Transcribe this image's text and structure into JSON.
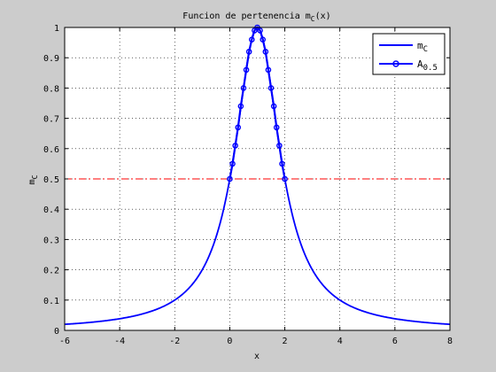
{
  "figure": {
    "background_color": "#cccccc"
  },
  "chart_data": {
    "type": "line",
    "title": "Funcion de pertenencia m",
    "title_sub": "C",
    "title_tail": "(x)",
    "xlabel": "x",
    "ylabel": "m",
    "ylabel_sub": "C",
    "xlim": [
      -6,
      8
    ],
    "ylim": [
      0,
      1
    ],
    "xticks": [
      -6,
      -4,
      -2,
      0,
      2,
      4,
      6,
      8
    ],
    "yticks": [
      0,
      0.1,
      0.2,
      0.3,
      0.4,
      0.5,
      0.6,
      0.7,
      0.8,
      0.9,
      1
    ],
    "grid": true,
    "legend_position": "top-right",
    "function": "1 / (1 + (x - 1)^2)",
    "series": [
      {
        "name": "m",
        "name_sub": "C",
        "color": "#0000ff",
        "marker": "none",
        "x": [
          -6,
          -5,
          -4,
          -3,
          -2,
          -1,
          -0.5,
          0,
          0.25,
          0.5,
          0.75,
          1,
          1.25,
          1.5,
          1.75,
          2,
          2.5,
          3,
          4,
          5,
          6,
          7,
          8
        ],
        "y": [
          0.02,
          0.027,
          0.038,
          0.059,
          0.1,
          0.2,
          0.31,
          0.5,
          0.64,
          0.8,
          0.94,
          1,
          0.94,
          0.8,
          0.64,
          0.5,
          0.31,
          0.2,
          0.1,
          0.059,
          0.038,
          0.027,
          0.02
        ]
      },
      {
        "name": "A",
        "name_sub": "0.5",
        "color": "#0000ff",
        "marker": "circle",
        "x": [
          0,
          0.1,
          0.2,
          0.3,
          0.4,
          0.5,
          0.6,
          0.7,
          0.8,
          0.9,
          1,
          1.1,
          1.2,
          1.3,
          1.4,
          1.5,
          1.6,
          1.7,
          1.8,
          1.9,
          2
        ],
        "y": [
          0.5,
          0.55,
          0.61,
          0.67,
          0.74,
          0.8,
          0.86,
          0.92,
          0.96,
          0.99,
          1,
          0.99,
          0.96,
          0.92,
          0.86,
          0.8,
          0.74,
          0.67,
          0.61,
          0.55,
          0.5
        ]
      }
    ],
    "reference_line": {
      "y": 0.5,
      "color": "#ff0000",
      "style": "dash-dot"
    }
  }
}
